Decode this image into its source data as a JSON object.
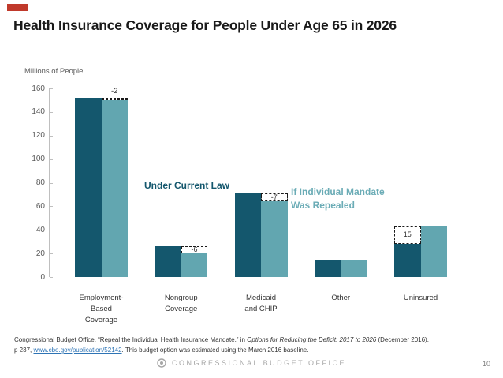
{
  "accent_color": "#c0392b",
  "title": "Health Insurance Coverage for People Under Age 65 in 2026",
  "chart_data": {
    "type": "bar",
    "title": "Health Insurance Coverage for People Under Age 65 in 2026",
    "ylabel": "Millions of People",
    "xlabel": "",
    "ylim": [
      0,
      160
    ],
    "yticks": [
      0,
      20,
      40,
      60,
      80,
      100,
      120,
      140,
      160
    ],
    "grid": false,
    "legend_position": "inline-annotations",
    "categories": [
      "Employment-Based Coverage",
      "Nongroup Coverage",
      "Medicaid and CHIP",
      "Other",
      "Uninsured"
    ],
    "category_label_lines": [
      [
        "Employment-",
        "Based",
        "Coverage"
      ],
      [
        "Nongroup",
        "Coverage"
      ],
      [
        "Medicaid",
        "and CHIP"
      ],
      [
        "Other"
      ],
      [
        "Uninsured"
      ]
    ],
    "series": [
      {
        "name": "Under Current Law",
        "color": "#14576d",
        "values": [
          152,
          26,
          71,
          15,
          28
        ]
      },
      {
        "name": "If Individual Mandate Was Repealed",
        "color": "#62a6b0",
        "values": [
          150,
          20,
          64,
          15,
          43
        ]
      }
    ],
    "difference_annotations": [
      {
        "category_index": 0,
        "label": "-2",
        "on_bar": "repealed",
        "label_position": "above"
      },
      {
        "category_index": 1,
        "label": "-6",
        "on_bar": "repealed",
        "label_position": "inside"
      },
      {
        "category_index": 2,
        "label": "-7",
        "on_bar": "repealed",
        "label_position": "inside"
      },
      {
        "category_index": 4,
        "label": "15",
        "on_bar": "current",
        "label_position": "inside"
      }
    ],
    "legend": {
      "current_law": {
        "text": "Under Current Law",
        "color": "#14576d"
      },
      "repealed": {
        "lines": [
          "If Individual Mandate",
          "Was Repealed"
        ],
        "color": "#6bacb6"
      }
    }
  },
  "footer": {
    "source_line1_pre": "Congressional Budget Office, “Repeal the Individual Health Insurance Mandate,” in ",
    "source_line1_italic": "Options for Reducing the Deficit: 2017 to 2026",
    "source_line1_post": " (December 2016),",
    "source_line2_pre": "p 237, ",
    "source_line2_link": "www.cbo.gov/publication/52142",
    "source_line2_post": ". This budget option was estimated using the March 2016 baseline.",
    "link_color": "#2e74b5",
    "brand": "CONGRESSIONAL BUDGET OFFICE",
    "page_number": "10"
  }
}
